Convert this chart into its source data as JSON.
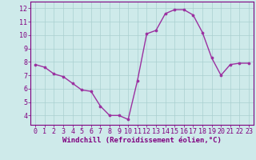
{
  "x": [
    0,
    1,
    2,
    3,
    4,
    5,
    6,
    7,
    8,
    9,
    10,
    11,
    12,
    13,
    14,
    15,
    16,
    17,
    18,
    19,
    20,
    21,
    22,
    23
  ],
  "y": [
    7.8,
    7.6,
    7.1,
    6.9,
    6.4,
    5.9,
    5.8,
    4.7,
    4.0,
    4.0,
    3.7,
    6.6,
    10.1,
    10.35,
    11.6,
    11.9,
    11.9,
    11.5,
    10.2,
    8.3,
    7.0,
    7.8,
    7.9,
    7.9
  ],
  "line_color": "#9b30a0",
  "marker_color": "#9b30a0",
  "bg_color": "#ceeaea",
  "grid_color": "#aacfcf",
  "axis_color": "#800080",
  "tick_color": "#800080",
  "xlabel": "Windchill (Refroidissement éolien,°C)",
  "xlim": [
    -0.5,
    23.5
  ],
  "ylim": [
    3.3,
    12.5
  ],
  "yticks": [
    4,
    5,
    6,
    7,
    8,
    9,
    10,
    11,
    12
  ],
  "xticks": [
    0,
    1,
    2,
    3,
    4,
    5,
    6,
    7,
    8,
    9,
    10,
    11,
    12,
    13,
    14,
    15,
    16,
    17,
    18,
    19,
    20,
    21,
    22,
    23
  ],
  "xlabel_fontsize": 6.5,
  "tick_fontsize": 6.0,
  "line_width": 1.0,
  "marker_size": 2.2
}
